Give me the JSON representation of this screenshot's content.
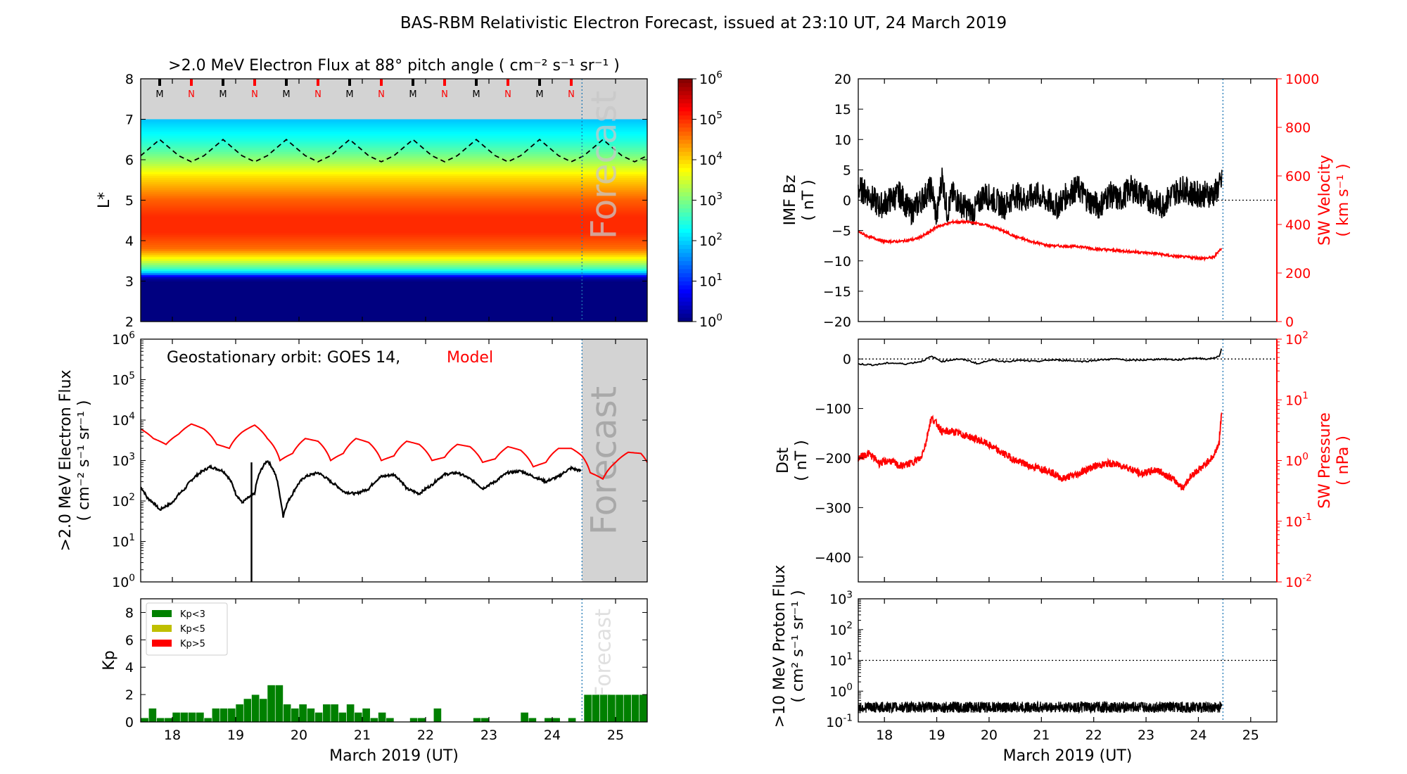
{
  "title": "BAS-RBM Relativistic Electron Forecast, issued at 23:10 UT, 24 March 2019",
  "colors": {
    "model": "#ff0000",
    "obs": "#000000",
    "forecast_line": "#1f77b4",
    "forecast_shade": "#d3d3d3",
    "kp_low": "#008000",
    "kp_mid": "#bfbf00",
    "kp_high": "#ff0000"
  },
  "chart_data": [
    {
      "id": "lstar",
      "type": "heatmap",
      "title": ">2.0 MeV Electron Flux at 88° pitch angle ( cm⁻² s⁻¹ sr⁻¹ )",
      "ylabel": "L*",
      "xlim": [
        17.5,
        25.5
      ],
      "ylim": [
        2,
        8
      ],
      "yticks": [
        2,
        3,
        4,
        5,
        6,
        7,
        8
      ],
      "forecast_start": 24.47,
      "forecast_label": "Forecast",
      "mn_markers": {
        "times": [
          17.8,
          18.3,
          18.8,
          19.3,
          19.8,
          20.3,
          20.8,
          21.3,
          21.8,
          22.3,
          22.8,
          23.3,
          23.8,
          24.3
        ],
        "labels": [
          "M",
          "N",
          "M",
          "N",
          "M",
          "N",
          "M",
          "N",
          "M",
          "N",
          "M",
          "N",
          "M",
          "N"
        ]
      },
      "flux_vs_L": {
        "L": [
          2.0,
          3.0,
          3.1,
          3.2,
          3.3,
          3.5,
          3.8,
          4.2,
          4.6,
          5.0,
          5.3,
          5.6,
          5.9,
          6.2,
          6.5,
          6.8,
          7.0
        ],
        "log10_flux": [
          0.0,
          0.0,
          0.4,
          1.8,
          2.6,
          3.5,
          4.6,
          5.0,
          5.0,
          4.7,
          4.3,
          3.9,
          3.3,
          2.8,
          2.4,
          2.1,
          1.9
        ]
      },
      "magnetopause": {
        "t": [
          17.5,
          17.8,
          18.1,
          18.3,
          18.5,
          18.8,
          19.1,
          19.3,
          19.5,
          19.8,
          20.1,
          20.3,
          20.5,
          20.8,
          21.1,
          21.3,
          21.5,
          21.8,
          22.1,
          22.3,
          22.5,
          22.8,
          23.1,
          23.3,
          23.5,
          23.8,
          24.1,
          24.3,
          24.5,
          24.8,
          25.1,
          25.3,
          25.5
        ],
        "L": [
          6.1,
          6.5,
          6.1,
          5.95,
          6.1,
          6.5,
          6.1,
          5.95,
          6.1,
          6.5,
          6.1,
          5.95,
          6.1,
          6.5,
          6.1,
          5.95,
          6.1,
          6.5,
          6.1,
          5.95,
          6.1,
          6.5,
          6.1,
          5.95,
          6.1,
          6.5,
          6.1,
          5.95,
          6.1,
          6.5,
          6.1,
          5.95,
          6.1
        ]
      },
      "colorbar": {
        "ticks": [
          "10^0",
          "10^1",
          "10^2",
          "10^3",
          "10^4",
          "10^5",
          "10^6"
        ],
        "range_log10": [
          0,
          6
        ]
      }
    },
    {
      "id": "geo",
      "type": "line",
      "ylabel": ">2.0 MeV Electron Flux",
      "ylabel2": "( cm⁻² s⁻¹ sr⁻¹ )",
      "legend_prefix": "Geostationary orbit:   GOES 14,",
      "legend_model": "Model",
      "forecast_label": "Forecast",
      "xlim": [
        17.5,
        25.5
      ],
      "ylim_log10": [
        0,
        6
      ],
      "yticks": [
        "10^0",
        "10^1",
        "10^2",
        "10^3",
        "10^4",
        "10^5",
        "10^6"
      ],
      "series": [
        {
          "name": "Model",
          "t": [
            17.5,
            17.7,
            17.9,
            18.1,
            18.3,
            18.5,
            18.7,
            18.9,
            19.1,
            19.3,
            19.5,
            19.7,
            19.9,
            20.1,
            20.3,
            20.5,
            20.7,
            20.9,
            21.1,
            21.3,
            21.5,
            21.7,
            21.9,
            22.1,
            22.3,
            22.5,
            22.7,
            22.9,
            23.1,
            23.3,
            23.5,
            23.7,
            23.9,
            24.1,
            24.3,
            24.47,
            24.6,
            24.8,
            25.0,
            25.2,
            25.4,
            25.5
          ],
          "values": [
            6000,
            3500,
            2500,
            4500,
            8000,
            6000,
            2500,
            2000,
            5000,
            7500,
            3500,
            1000,
            1500,
            3500,
            3000,
            1000,
            1500,
            3500,
            2800,
            1000,
            1300,
            3000,
            2500,
            1000,
            1200,
            2500,
            2200,
            900,
            1100,
            2200,
            1800,
            700,
            900,
            2000,
            2000,
            1300,
            500,
            350,
            900,
            1600,
            1500,
            900
          ]
        },
        {
          "name": "GOES 14",
          "t": [
            17.5,
            17.6,
            17.8,
            18.0,
            18.2,
            18.4,
            18.6,
            18.8,
            19.0,
            19.1,
            19.3,
            19.5,
            19.7,
            19.75,
            19.9,
            20.1,
            20.3,
            20.5,
            20.7,
            20.9,
            21.1,
            21.3,
            21.5,
            21.7,
            21.9,
            22.1,
            22.3,
            22.5,
            22.7,
            22.9,
            23.1,
            23.3,
            23.5,
            23.7,
            23.9,
            24.1,
            24.3,
            24.45
          ],
          "values": [
            220,
            120,
            60,
            90,
            200,
            450,
            700,
            550,
            150,
            90,
            150,
            1000,
            120,
            40,
            150,
            400,
            500,
            300,
            170,
            150,
            200,
            400,
            450,
            200,
            150,
            250,
            450,
            500,
            350,
            200,
            300,
            500,
            550,
            400,
            300,
            400,
            650,
            550
          ]
        }
      ],
      "dropout": {
        "t": 19.5,
        "value": 1
      }
    },
    {
      "id": "kp",
      "type": "bar",
      "ylabel": "Kp",
      "xlabel": "March 2019 (UT)",
      "xlim": [
        17.5,
        25.5
      ],
      "ylim": [
        0,
        9
      ],
      "yticks": [
        0,
        2,
        4,
        6,
        8
      ],
      "xticks": [
        18,
        19,
        20,
        21,
        22,
        23,
        24,
        25
      ],
      "forecast_label": "Forecast",
      "legend": [
        "Kp<3",
        "Kp<5",
        "Kp>5"
      ],
      "bar_width_days": 0.125,
      "t_start": 17.5,
      "values": [
        0.3,
        1.0,
        0.3,
        0.3,
        0.7,
        0.7,
        0.7,
        0.7,
        0.3,
        1.0,
        1.0,
        1.0,
        1.3,
        1.7,
        2.0,
        1.7,
        2.7,
        2.7,
        1.3,
        1.0,
        1.3,
        1.0,
        0.7,
        1.3,
        1.3,
        0.7,
        1.3,
        0.7,
        1.0,
        0.3,
        0.7,
        0.3,
        0,
        0,
        0.3,
        0.3,
        0,
        1.0,
        0,
        0,
        0,
        0,
        0.3,
        0.3,
        0,
        0,
        0,
        0,
        0.7,
        0.3,
        0,
        0.3,
        0.3,
        0,
        0.3,
        0,
        0,
        0
      ],
      "forecast_values": [
        2,
        2,
        2,
        2,
        2,
        2,
        2,
        2
      ],
      "forecast_t_start": 24.5
    },
    {
      "id": "imf",
      "type": "line",
      "ylabel": "IMF Bz",
      "ylabel2": "( nT )",
      "ylabel_right": "SW Velocity",
      "ylabel_right2": "( km s⁻¹ )",
      "xlim": [
        17.5,
        25.5
      ],
      "ylim": [
        -20,
        20
      ],
      "yticks": [
        -20,
        -15,
        -10,
        -5,
        0,
        5,
        10,
        15,
        20
      ],
      "ylim_right": [
        0,
        1000
      ],
      "yticks_right": [
        0,
        200,
        400,
        600,
        800,
        1000
      ],
      "series": [
        {
          "name": "IMF Bz",
          "t": [
            17.5,
            17.7,
            17.9,
            18.1,
            18.3,
            18.5,
            18.7,
            18.9,
            19.0,
            19.1,
            19.2,
            19.3,
            19.5,
            19.7,
            19.9,
            20.1,
            20.3,
            20.5,
            20.7,
            20.9,
            21.1,
            21.3,
            21.5,
            21.7,
            21.9,
            22.1,
            22.3,
            22.5,
            22.7,
            22.9,
            23.1,
            23.3,
            23.5,
            23.7,
            23.9,
            24.1,
            24.3,
            24.45
          ],
          "values": [
            2,
            1,
            -1,
            0,
            1,
            -2,
            0,
            2,
            -3,
            4,
            -2,
            1,
            -1,
            -2,
            1,
            0,
            -1,
            1,
            0,
            1,
            0,
            -1,
            1,
            2,
            0,
            -1,
            1,
            0,
            2,
            1,
            0,
            -1,
            1,
            2,
            1,
            1,
            1,
            3
          ]
        },
        {
          "name": "SW Velocity",
          "t": [
            17.5,
            17.7,
            18.0,
            18.3,
            18.6,
            18.8,
            19.0,
            19.3,
            19.6,
            19.9,
            20.2,
            20.5,
            20.8,
            21.1,
            21.4,
            21.7,
            22.0,
            22.3,
            22.6,
            22.9,
            23.2,
            23.5,
            23.8,
            24.1,
            24.3,
            24.4,
            24.45
          ],
          "values": [
            370,
            350,
            330,
            330,
            340,
            360,
            390,
            410,
            410,
            400,
            380,
            350,
            330,
            315,
            310,
            310,
            300,
            295,
            290,
            285,
            280,
            270,
            265,
            260,
            265,
            295,
            300
          ]
        }
      ],
      "zero_line": 0
    },
    {
      "id": "dst",
      "type": "line",
      "ylabel": "Dst",
      "ylabel2": "( nT )",
      "ylabel_right": "SW Pressure",
      "ylabel_right2": "( nPa )",
      "xlim": [
        17.5,
        25.5
      ],
      "ylim": [
        -450,
        40
      ],
      "yticks": [
        -400,
        -300,
        -200,
        -100,
        0
      ],
      "ylim_right_log10": [
        -2,
        2
      ],
      "yticks_right": [
        "10^-2",
        "10^-1",
        "10^0",
        "10^1",
        "10^2"
      ],
      "series": [
        {
          "name": "Dst",
          "t": [
            17.5,
            17.8,
            18.1,
            18.4,
            18.7,
            18.9,
            19.1,
            19.4,
            19.6,
            19.8,
            20.0,
            20.3,
            20.6,
            20.9,
            21.2,
            21.5,
            21.8,
            22.1,
            22.4,
            22.7,
            23.0,
            23.3,
            23.6,
            23.9,
            24.2,
            24.4,
            24.45
          ],
          "values": [
            -10,
            -12,
            -8,
            -10,
            -5,
            5,
            -5,
            0,
            -3,
            -10,
            -2,
            -5,
            -3,
            -5,
            -2,
            -3,
            -5,
            -2,
            0,
            -3,
            -2,
            0,
            -2,
            2,
            0,
            5,
            25
          ]
        },
        {
          "name": "SW Pressure",
          "t": [
            17.5,
            17.7,
            17.9,
            18.1,
            18.3,
            18.5,
            18.7,
            18.8,
            18.9,
            19.1,
            19.3,
            19.6,
            19.9,
            20.2,
            20.5,
            20.8,
            21.1,
            21.4,
            21.7,
            22.0,
            22.3,
            22.6,
            22.9,
            23.2,
            23.5,
            23.7,
            23.9,
            24.1,
            24.3,
            24.4,
            24.45
          ],
          "values": [
            1.1,
            1.3,
            0.9,
            1.0,
            0.8,
            0.9,
            1.1,
            2.0,
            5.0,
            3.0,
            3.0,
            2.5,
            2.0,
            1.4,
            1.0,
            0.8,
            0.7,
            0.5,
            0.6,
            0.8,
            0.9,
            0.8,
            0.6,
            0.7,
            0.5,
            0.35,
            0.6,
            0.8,
            1.2,
            2.0,
            6.0
          ]
        }
      ],
      "zero_line": 0
    },
    {
      "id": "proton",
      "type": "line",
      "ylabel": ">10 MeV Proton Flux",
      "ylabel2": "( cm² s⁻¹ sr⁻¹ )",
      "xlabel": "March 2019 (UT)",
      "xlim": [
        17.5,
        25.5
      ],
      "ylim_log10": [
        -1,
        3
      ],
      "yticks": [
        "10^-1",
        "10^0",
        "10^1",
        "10^2",
        "10^3"
      ],
      "xticks": [
        18,
        19,
        20,
        21,
        22,
        23,
        24,
        25
      ],
      "threshold": 10,
      "series": [
        {
          "name": ">10 MeV Proton Flux",
          "t": [
            17.5,
            24.45
          ],
          "typical_value": 0.3,
          "noise_log10": 0.18
        }
      ]
    }
  ]
}
